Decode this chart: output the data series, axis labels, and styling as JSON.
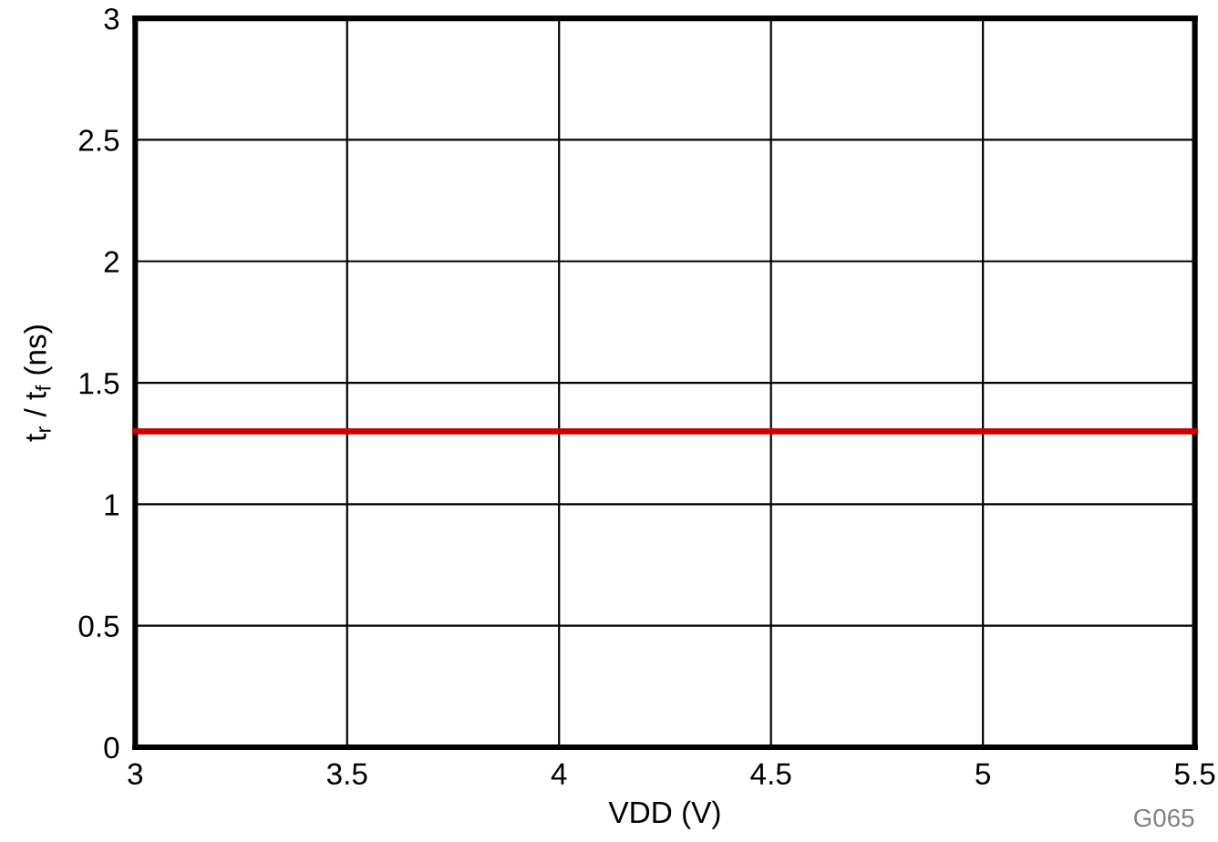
{
  "chart_data": {
    "type": "line",
    "xlabel": "VDD (V)",
    "ylabel": "t$_{r}$ / t$_{f}$ (ns)",
    "x": [
      3,
      5.5
    ],
    "series": [
      {
        "color": "#cc0000",
        "values": [
          1.3,
          1.3
        ]
      }
    ],
    "xlim": [
      3,
      5.5
    ],
    "xticks": [
      3,
      3.5,
      4,
      4.5,
      5,
      5.5
    ],
    "ylim": [
      0,
      3
    ],
    "yticks": [
      0,
      0.5,
      1,
      1.5,
      2,
      2.5,
      3
    ],
    "grid": true,
    "marker": "none",
    "line_style": "solid",
    "annotations": [
      "G065"
    ]
  }
}
